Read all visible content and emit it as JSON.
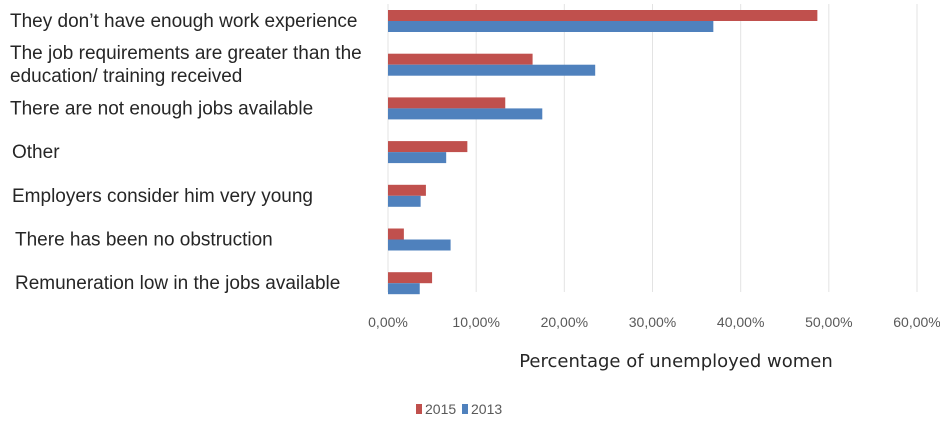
{
  "chart_data": {
    "type": "bar",
    "orientation": "horizontal",
    "categories": [
      "They don’t have enough work experience",
      "The job requirements are greater than the education/ training received",
      "There are not enough jobs available",
      "Other",
      "Employers consider him very young",
      "There has been no obstruction",
      "Remuneration low in the jobs available"
    ],
    "category_lines": [
      [
        "They don’t have enough work experience"
      ],
      [
        "The job requirements are greater than the",
        "education/ training received"
      ],
      [
        "There are not enough jobs available"
      ],
      [
        "Other"
      ],
      [
        "Employers consider him very young"
      ],
      [
        "There has been no obstruction"
      ],
      [
        "Remuneration low in the jobs available"
      ]
    ],
    "series": [
      {
        "name": "2015",
        "color": "#c0504d",
        "values": [
          48.7,
          16.4,
          13.3,
          9.0,
          4.3,
          1.8,
          5.0
        ]
      },
      {
        "name": "2013",
        "color": "#4f81bd",
        "values": [
          36.9,
          23.5,
          17.5,
          6.6,
          3.7,
          7.1,
          3.6
        ]
      }
    ],
    "xlim": [
      0,
      60
    ],
    "xticks": [
      "0,00%",
      "10,00%",
      "20,00%",
      "30,00%",
      "40,00%",
      "50,00%",
      "60,00%"
    ],
    "xlabel": "Percentage of unemployed women",
    "gridlines": true,
    "legend_position": "bottom"
  }
}
